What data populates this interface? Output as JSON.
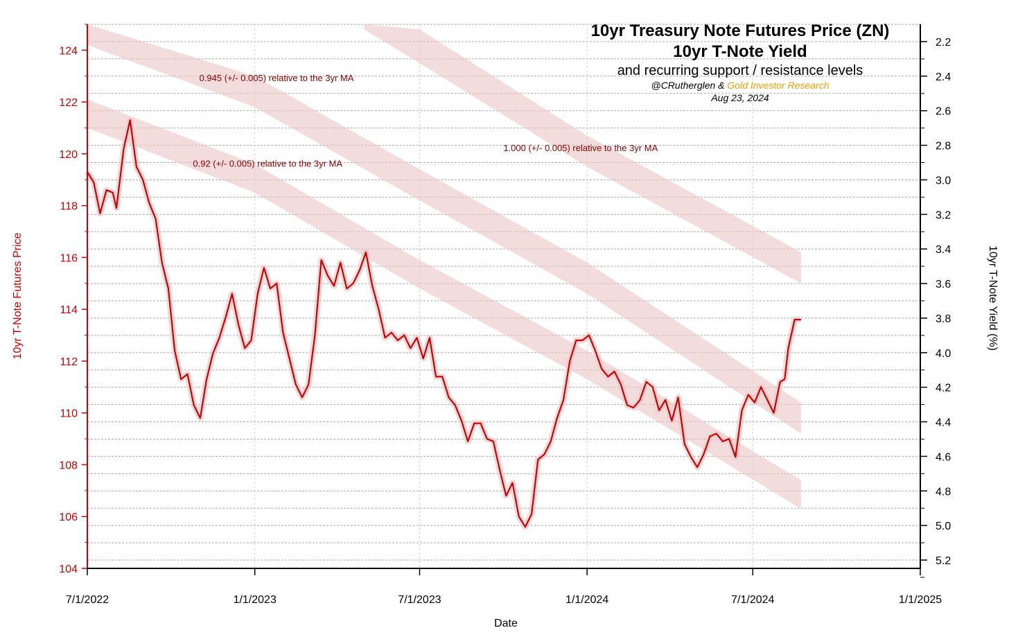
{
  "colors": {
    "price_line": "#cc0000",
    "band_fill": "#e9c4c4",
    "left_axis": "#cc0000",
    "right_axis": "#000000",
    "grid": "#a8a8a8",
    "annotation": "#8b0000",
    "credit_accent": "#f0a000"
  },
  "chart_data": {
    "type": "line",
    "title": "10yr Treasury Note Futures Price (ZN)",
    "subtitle": "10yr T-Note Yield",
    "subtitle2": "and recurring support / resistance levels",
    "credit_prefix": "@CRutherglen & ",
    "credit_accent": "Gold Investor Research",
    "date": "Aug 23, 2024",
    "xlabel": "Date",
    "ylabel": "10yr T-Note Futures Price",
    "y2label": "10yr T-Note Yield (%)",
    "x_ticks": [
      "7/1/2022",
      "1/1/2023",
      "7/1/2023",
      "1/1/2024",
      "7/1/2024",
      "1/1/2025"
    ],
    "xlim": [
      "2022-07-01",
      "2025-01-01"
    ],
    "ylim": [
      104,
      125
    ],
    "y_ticks": [
      104,
      106,
      108,
      110,
      112,
      114,
      116,
      118,
      120,
      122,
      124
    ],
    "y2_ticks": [
      "2.2",
      "2.4",
      "2.6",
      "2.8",
      "3.0",
      "3.2",
      "3.4",
      "3.6",
      "3.8",
      "4.0",
      "4.2",
      "4.4",
      "4.6",
      "4.8",
      "5.0",
      "5.2"
    ],
    "y2_values": [
      2.2,
      2.4,
      2.6,
      2.8,
      3.0,
      3.2,
      3.4,
      3.6,
      3.8,
      4.0,
      4.2,
      4.4,
      4.6,
      4.8,
      5.0,
      5.2
    ],
    "grid": true,
    "annotations": [
      {
        "text": "0.945 (+/- 0.005) relative to the 3yr MA",
        "at": [
          "2022-11-01",
          122.8
        ]
      },
      {
        "text": "0.92 (+/- 0.005) relative to the 3yr MA",
        "at": [
          "2022-10-25",
          119.5
        ]
      },
      {
        "text": "1.000 (+/- 0.005) relative to the 3yr MA",
        "at": [
          "2023-10-01",
          120.1
        ]
      }
    ],
    "bands": [
      {
        "name": "0.92",
        "x": [
          "2022-07-01",
          "2023-01-01",
          "2023-07-01",
          "2024-01-01",
          "2024-08-23"
        ],
        "lower": [
          121.0,
          118.5,
          114.8,
          111.3,
          106.3
        ],
        "upper": [
          122.1,
          119.6,
          115.9,
          112.4,
          107.4
        ]
      },
      {
        "name": "0.945",
        "x": [
          "2022-07-01",
          "2023-01-01",
          "2023-07-01",
          "2024-01-01",
          "2024-08-23"
        ],
        "lower": [
          124.2,
          121.8,
          118.2,
          114.6,
          109.2
        ],
        "upper": [
          125.2,
          123.0,
          119.4,
          115.8,
          110.4
        ]
      },
      {
        "name": "1.000",
        "x": [
          "2023-05-01",
          "2023-07-01",
          "2024-01-01",
          "2024-08-23"
        ],
        "lower": [
          124.8,
          123.5,
          119.5,
          115.0
        ],
        "upper": [
          125.5,
          124.8,
          120.7,
          116.2
        ]
      }
    ],
    "series": [
      {
        "x": [
          "2022-07-01",
          "2022-07-08",
          "2022-07-15",
          "2022-07-22",
          "2022-07-29",
          "2022-08-02",
          "2022-08-10",
          "2022-08-17",
          "2022-08-24",
          "2022-08-31",
          "2022-09-07",
          "2022-09-14",
          "2022-09-21",
          "2022-09-28",
          "2022-10-05",
          "2022-10-12",
          "2022-10-19",
          "2022-10-26",
          "2022-11-02",
          "2022-11-09",
          "2022-11-16",
          "2022-11-23",
          "2022-11-30",
          "2022-12-07",
          "2022-12-14",
          "2022-12-21",
          "2022-12-28",
          "2023-01-04",
          "2023-01-11",
          "2023-01-18",
          "2023-01-25",
          "2023-02-01",
          "2023-02-08",
          "2023-02-15",
          "2023-02-22",
          "2023-03-01",
          "2023-03-08",
          "2023-03-15",
          "2023-03-22",
          "2023-03-29",
          "2023-04-05",
          "2023-04-12",
          "2023-04-19",
          "2023-04-26",
          "2023-05-03",
          "2023-05-10",
          "2023-05-17",
          "2023-05-24",
          "2023-05-31",
          "2023-06-07",
          "2023-06-14",
          "2023-06-21",
          "2023-06-28",
          "2023-07-05",
          "2023-07-12",
          "2023-07-19",
          "2023-07-26",
          "2023-08-02",
          "2023-08-09",
          "2023-08-16",
          "2023-08-23",
          "2023-08-30",
          "2023-09-06",
          "2023-09-13",
          "2023-09-20",
          "2023-09-27",
          "2023-10-04",
          "2023-10-11",
          "2023-10-18",
          "2023-10-25",
          "2023-11-01",
          "2023-11-08",
          "2023-11-15",
          "2023-11-22",
          "2023-11-29",
          "2023-12-06",
          "2023-12-13",
          "2023-12-20",
          "2023-12-27",
          "2024-01-03",
          "2024-01-10",
          "2024-01-17",
          "2024-01-24",
          "2024-01-31",
          "2024-02-07",
          "2024-02-14",
          "2024-02-21",
          "2024-02-28",
          "2024-03-06",
          "2024-03-13",
          "2024-03-20",
          "2024-03-27",
          "2024-04-03",
          "2024-04-10",
          "2024-04-17",
          "2024-04-24",
          "2024-05-01",
          "2024-05-08",
          "2024-05-15",
          "2024-05-22",
          "2024-05-29",
          "2024-06-05",
          "2024-06-12",
          "2024-06-19",
          "2024-06-26",
          "2024-07-03",
          "2024-07-10",
          "2024-07-17",
          "2024-07-24",
          "2024-07-31",
          "2024-08-05",
          "2024-08-09",
          "2024-08-16",
          "2024-08-23"
        ],
        "y": [
          119.3,
          118.9,
          117.7,
          118.6,
          118.5,
          117.9,
          120.2,
          121.3,
          119.5,
          119.0,
          118.1,
          117.5,
          115.8,
          114.8,
          112.4,
          111.3,
          111.5,
          110.3,
          109.8,
          111.3,
          112.3,
          112.9,
          113.7,
          114.6,
          113.4,
          112.5,
          112.8,
          114.6,
          115.6,
          114.8,
          115.0,
          113.1,
          112.1,
          111.1,
          110.6,
          111.1,
          113.0,
          115.9,
          115.3,
          114.9,
          115.8,
          114.8,
          115.0,
          115.5,
          116.2,
          114.9,
          114.0,
          112.9,
          113.1,
          112.8,
          113.0,
          112.5,
          112.9,
          112.1,
          112.9,
          111.4,
          111.4,
          110.6,
          110.3,
          109.7,
          108.9,
          109.6,
          109.6,
          109.0,
          108.9,
          107.8,
          106.8,
          107.3,
          106.0,
          105.6,
          106.1,
          108.2,
          108.4,
          108.9,
          109.8,
          110.5,
          112.0,
          112.8,
          112.8,
          113.0,
          112.4,
          111.7,
          111.4,
          111.6,
          111.1,
          110.3,
          110.2,
          110.5,
          111.2,
          111.0,
          110.1,
          110.5,
          109.7,
          110.6,
          108.8,
          108.3,
          107.9,
          108.4,
          109.1,
          109.2,
          108.9,
          109.0,
          108.3,
          110.1,
          110.7,
          110.4,
          111.0,
          110.5,
          110.0,
          111.2,
          111.3,
          112.5,
          113.6,
          113.6
        ],
        "price_range": [
          105.6,
          121.3
        ]
      }
    ]
  }
}
